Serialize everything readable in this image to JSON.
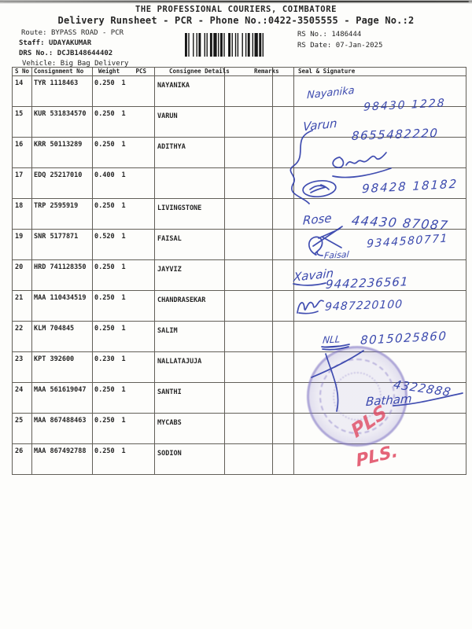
{
  "header": {
    "title": "THE PROFESSIONAL COURIERS, COIMBATORE",
    "subtitle": "Delivery Runsheet - PCR - Phone No.:0422-3505555 - Page No.:2"
  },
  "meta": {
    "route_label": "Route:",
    "route": "BYPASS ROAD - PCR",
    "staff_label": "Staff:",
    "staff": "UDAYAKUMAR",
    "drs_label": "DRS No.:",
    "drs": "DCJB148644402",
    "vehicle_label": "Vehicle:",
    "vehicle": "Big Bag Delivery",
    "rs_no_label": "RS No.:",
    "rs_no": "1486444",
    "rs_date_label": "RS Date:",
    "rs_date": "07-Jan-2025"
  },
  "table": {
    "columns": [
      "S No",
      "Consignment No",
      "Weight",
      "PCS",
      "Consignee Details",
      "Remarks",
      "Seal & Signature"
    ],
    "rows": [
      {
        "s_no": "14",
        "consignment_no": "TYR 1118463",
        "weight": "0.250",
        "pcs": "1",
        "consignee": "NAYANIKA",
        "remarks": ""
      },
      {
        "s_no": "15",
        "consignment_no": "KUR 531834570",
        "weight": "0.250",
        "pcs": "1",
        "consignee": "VARUN",
        "remarks": ""
      },
      {
        "s_no": "16",
        "consignment_no": "KRR 50113289",
        "weight": "0.250",
        "pcs": "1",
        "consignee": "ADITHYA",
        "remarks": ""
      },
      {
        "s_no": "17",
        "consignment_no": "EDQ 25217010",
        "weight": "0.400",
        "pcs": "1",
        "consignee": "",
        "remarks": ""
      },
      {
        "s_no": "18",
        "consignment_no": "TRP 2595919",
        "weight": "0.250",
        "pcs": "1",
        "consignee": "LIVINGSTONE",
        "remarks": ""
      },
      {
        "s_no": "19",
        "consignment_no": "SNR 5177871",
        "weight": "0.520",
        "pcs": "1",
        "consignee": "FAISAL",
        "remarks": ""
      },
      {
        "s_no": "20",
        "consignment_no": "HRD 741128350",
        "weight": "0.250",
        "pcs": "1",
        "consignee": "JAYVIZ",
        "remarks": ""
      },
      {
        "s_no": "21",
        "consignment_no": "MAA 110434519",
        "weight": "0.250",
        "pcs": "1",
        "consignee": "CHANDRASEKAR",
        "remarks": ""
      },
      {
        "s_no": "22",
        "consignment_no": "KLM 704845",
        "weight": "0.250",
        "pcs": "1",
        "consignee": "SALIM",
        "remarks": ""
      },
      {
        "s_no": "23",
        "consignment_no": "KPT 392600",
        "weight": "0.230",
        "pcs": "1",
        "consignee": "NALLATAJUJA",
        "remarks": ""
      },
      {
        "s_no": "24",
        "consignment_no": "MAA 561619047",
        "weight": "0.250",
        "pcs": "1",
        "consignee": "SANTHI",
        "remarks": ""
      },
      {
        "s_no": "25",
        "consignment_no": "MAA 867488463",
        "weight": "0.250",
        "pcs": "1",
        "consignee": "MYCABS",
        "remarks": ""
      },
      {
        "s_no": "26",
        "consignment_no": "MAA 867492788",
        "weight": "0.250",
        "pcs": "1",
        "consignee": "SODION",
        "remarks": ""
      }
    ]
  },
  "signatures": {
    "r14": {
      "name": "Nayanika",
      "phone": "98430 1228"
    },
    "r15": {
      "name": "Varun",
      "phone": "8655482220"
    },
    "r17": {
      "phone": "98428 18182"
    },
    "r18": {
      "name": "Rose",
      "phone": "44430 87087"
    },
    "r19": {
      "phone": "9344580771",
      "name": "Faisal"
    },
    "r20": {
      "name": "Xavain",
      "phone": "9442236561"
    },
    "r21": {
      "phone": "9487220100"
    },
    "r22": {
      "sign": "NLL",
      "phone": "8015025860"
    },
    "r24": {
      "phone": "4322888",
      "name": "Batham"
    },
    "r25": {
      "mark": "PLS"
    },
    "r26": {
      "mark": "PLS."
    }
  },
  "colors": {
    "ink_blue": "#2c3ba8",
    "ink_red": "#e04a62",
    "stamp_purple": "#7c70c2"
  }
}
